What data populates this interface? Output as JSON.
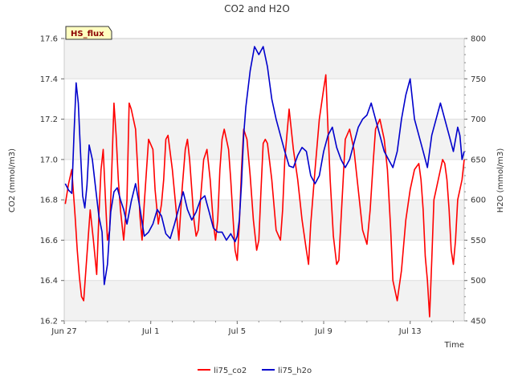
{
  "chart_data": {
    "type": "line",
    "title": "CO2 and H2O",
    "badge": "HS_flux",
    "xlabel": "Time",
    "ylabel_left": "CO2 (mmol/m3)",
    "ylabel_right": "H2O (mmol/m3)",
    "ylim_left": [
      16.2,
      17.6
    ],
    "ylim_right": [
      450,
      800
    ],
    "xlim_days": [
      0,
      18.5
    ],
    "yticks_left": [
      {
        "value": 16.2,
        "label": "16.2"
      },
      {
        "value": 16.4,
        "label": "16.4"
      },
      {
        "value": 16.6,
        "label": "16.6"
      },
      {
        "value": 16.8,
        "label": "16.8"
      },
      {
        "value": 17.0,
        "label": "17.0"
      },
      {
        "value": 17.2,
        "label": "17.2"
      },
      {
        "value": 17.4,
        "label": "17.4"
      },
      {
        "value": 17.6,
        "label": "17.6"
      }
    ],
    "yticks_right": [
      {
        "value": 450,
        "label": "450"
      },
      {
        "value": 500,
        "label": "500"
      },
      {
        "value": 550,
        "label": "550"
      },
      {
        "value": 600,
        "label": "600"
      },
      {
        "value": 650,
        "label": "650"
      },
      {
        "value": 700,
        "label": "700"
      },
      {
        "value": 750,
        "label": "750"
      },
      {
        "value": 800,
        "label": "800"
      }
    ],
    "xticks": [
      {
        "day": 0,
        "label": "Jun 27"
      },
      {
        "day": 4,
        "label": "Jul 1"
      },
      {
        "day": 8,
        "label": "Jul 5"
      },
      {
        "day": 12,
        "label": "Jul 9"
      },
      {
        "day": 16,
        "label": "Jul 13"
      }
    ],
    "bands_left": [
      [
        16.2,
        16.4
      ],
      [
        16.6,
        16.8
      ],
      [
        17.0,
        17.2
      ],
      [
        17.4,
        17.6
      ]
    ],
    "series": [
      {
        "name": "li75_co2",
        "axis": "left",
        "color": "#ff0000",
        "x": [
          0.05,
          0.2,
          0.35,
          0.5,
          0.6,
          0.7,
          0.8,
          0.9,
          1.0,
          1.1,
          1.2,
          1.35,
          1.5,
          1.6,
          1.7,
          1.8,
          1.9,
          2.0,
          2.1,
          2.2,
          2.3,
          2.4,
          2.5,
          2.6,
          2.75,
          2.9,
          3.0,
          3.1,
          3.2,
          3.3,
          3.4,
          3.5,
          3.6,
          3.7,
          3.9,
          4.1,
          4.2,
          4.35,
          4.5,
          4.6,
          4.7,
          4.8,
          5.0,
          5.2,
          5.3,
          5.45,
          5.6,
          5.7,
          5.8,
          5.9,
          6.0,
          6.1,
          6.2,
          6.3,
          6.45,
          6.6,
          6.75,
          6.9,
          7.0,
          7.1,
          7.2,
          7.3,
          7.4,
          7.5,
          7.6,
          7.7,
          7.8,
          7.9,
          8.0,
          8.1,
          8.2,
          8.3,
          8.45,
          8.6,
          8.75,
          8.9,
          9.0,
          9.1,
          9.2,
          9.3,
          9.4,
          9.6,
          9.8,
          10.0,
          10.1,
          10.2,
          10.4,
          10.6,
          10.8,
          11.0,
          11.2,
          11.3,
          11.4,
          11.6,
          11.8,
          12.0,
          12.1,
          12.2,
          12.3,
          12.45,
          12.6,
          12.7,
          12.8,
          12.9,
          13.0,
          13.2,
          13.4,
          13.6,
          13.8,
          14.0,
          14.15,
          14.3,
          14.4,
          14.6,
          14.8,
          14.95,
          15.1,
          15.2,
          15.4,
          15.6,
          15.8,
          16.0,
          16.2,
          16.4,
          16.5,
          16.6,
          16.7,
          16.8,
          16.9,
          17.0,
          17.1,
          17.2,
          17.3,
          17.4,
          17.5,
          17.6,
          17.7,
          17.8,
          17.9,
          18.0,
          18.1,
          18.2,
          18.3,
          18.4,
          18.5
        ],
        "values": [
          16.78,
          16.88,
          16.95,
          16.72,
          16.55,
          16.42,
          16.32,
          16.3,
          16.45,
          16.6,
          16.75,
          16.6,
          16.43,
          16.72,
          16.95,
          17.05,
          16.82,
          16.6,
          16.65,
          16.95,
          17.28,
          17.12,
          16.9,
          16.75,
          16.6,
          16.8,
          17.28,
          17.25,
          17.2,
          17.15,
          16.95,
          16.72,
          16.6,
          16.78,
          17.1,
          17.05,
          16.85,
          16.68,
          16.78,
          16.9,
          17.1,
          17.12,
          16.95,
          16.72,
          16.6,
          16.85,
          17.05,
          17.1,
          17.0,
          16.85,
          16.7,
          16.62,
          16.65,
          16.8,
          17.0,
          17.05,
          16.9,
          16.68,
          16.6,
          16.7,
          16.95,
          17.1,
          17.15,
          17.1,
          17.05,
          16.9,
          16.72,
          16.55,
          16.5,
          16.68,
          16.95,
          17.15,
          17.1,
          16.92,
          16.7,
          16.55,
          16.6,
          16.85,
          17.08,
          17.1,
          17.08,
          16.9,
          16.65,
          16.6,
          16.75,
          17.0,
          17.25,
          17.05,
          16.9,
          16.7,
          16.55,
          16.48,
          16.68,
          16.95,
          17.2,
          17.35,
          17.42,
          17.15,
          16.9,
          16.62,
          16.48,
          16.5,
          16.7,
          16.9,
          17.1,
          17.15,
          17.05,
          16.85,
          16.65,
          16.58,
          16.75,
          17.0,
          17.15,
          17.2,
          17.1,
          16.95,
          16.65,
          16.4,
          16.3,
          16.45,
          16.7,
          16.85,
          16.95,
          16.98,
          16.9,
          16.75,
          16.52,
          16.4,
          16.22,
          16.5,
          16.8,
          16.85,
          16.9,
          16.95,
          17.0,
          16.98,
          16.9,
          16.75,
          16.55,
          16.48,
          16.6,
          16.8,
          16.85,
          16.9,
          17.0
        ]
      },
      {
        "name": "li75_h2o",
        "axis": "right",
        "color": "#0000cc",
        "x": [
          0.05,
          0.2,
          0.35,
          0.45,
          0.55,
          0.65,
          0.75,
          0.85,
          0.95,
          1.05,
          1.15,
          1.3,
          1.45,
          1.6,
          1.75,
          1.85,
          2.0,
          2.15,
          2.3,
          2.45,
          2.6,
          2.75,
          2.9,
          3.1,
          3.3,
          3.5,
          3.7,
          3.9,
          4.1,
          4.3,
          4.5,
          4.7,
          4.9,
          5.1,
          5.3,
          5.5,
          5.7,
          5.9,
          6.1,
          6.3,
          6.5,
          6.7,
          6.9,
          7.1,
          7.3,
          7.5,
          7.7,
          7.9,
          8.0,
          8.1,
          8.2,
          8.3,
          8.4,
          8.6,
          8.8,
          9.0,
          9.2,
          9.4,
          9.6,
          9.8,
          10.0,
          10.2,
          10.4,
          10.6,
          10.8,
          11.0,
          11.2,
          11.4,
          11.6,
          11.8,
          12.0,
          12.2,
          12.4,
          12.6,
          12.8,
          13.0,
          13.2,
          13.4,
          13.6,
          13.8,
          14.0,
          14.2,
          14.4,
          14.6,
          14.8,
          15.0,
          15.2,
          15.4,
          15.6,
          15.8,
          16.0,
          16.2,
          16.4,
          16.6,
          16.8,
          17.0,
          17.2,
          17.4,
          17.6,
          17.8,
          18.0,
          18.2,
          18.3,
          18.4,
          18.5
        ],
        "values": [
          620,
          612,
          608,
          680,
          745,
          720,
          660,
          605,
          590,
          618,
          668,
          650,
          615,
          580,
          560,
          495,
          520,
          585,
          610,
          615,
          600,
          588,
          570,
          598,
          620,
          590,
          555,
          560,
          570,
          588,
          580,
          558,
          552,
          570,
          590,
          610,
          588,
          575,
          585,
          600,
          605,
          585,
          565,
          560,
          560,
          550,
          558,
          548,
          555,
          575,
          620,
          680,
          715,
          760,
          790,
          780,
          790,
          765,
          725,
          700,
          680,
          660,
          642,
          640,
          655,
          665,
          660,
          630,
          620,
          630,
          660,
          680,
          690,
          665,
          650,
          640,
          650,
          670,
          690,
          700,
          705,
          720,
          700,
          680,
          660,
          650,
          640,
          660,
          700,
          730,
          750,
          700,
          680,
          660,
          640,
          680,
          700,
          720,
          700,
          680,
          660,
          690,
          680,
          650,
          660
        ]
      }
    ],
    "legend": [
      {
        "label": "li75_co2",
        "color": "#ff0000"
      },
      {
        "label": "li75_h2o",
        "color": "#0000cc"
      }
    ]
  }
}
